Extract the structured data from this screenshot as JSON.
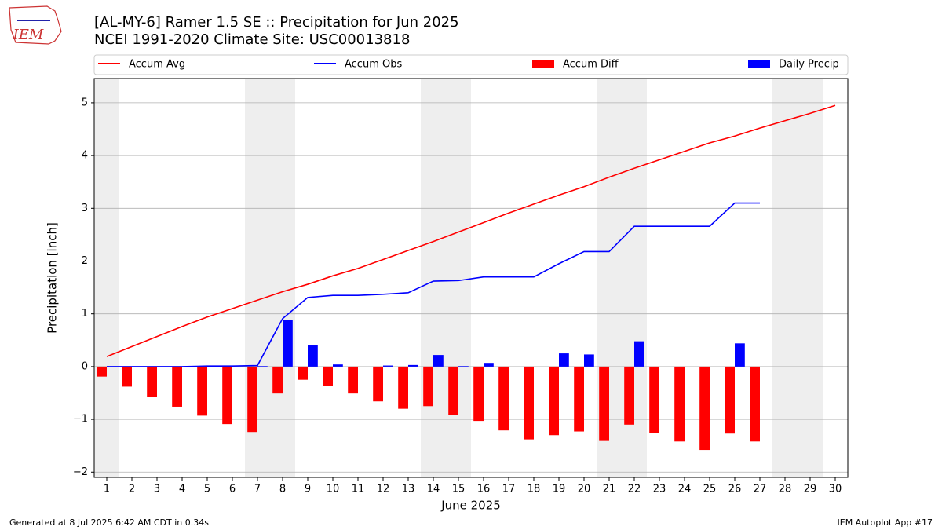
{
  "chart_data": {
    "type": "combo",
    "logo_text": "IEM",
    "title": "[AL-MY-6] Ramer 1.5 SE :: Precipitation for Jun 2025",
    "subtitle": "NCEI 1991-2020 Climate Site: USC00013818",
    "y_label": "Precipitation [inch]",
    "x_label": "June 2025",
    "footer_left": "Generated at 8 Jul 2025 6:42 AM CDT in 0.34s",
    "footer_right": "IEM Autoplot App #17",
    "xlim": [
      0.5,
      30.5
    ],
    "ylim": [
      -2.1,
      5.46
    ],
    "xticks": [
      1,
      2,
      3,
      4,
      5,
      6,
      7,
      8,
      9,
      10,
      11,
      12,
      13,
      14,
      15,
      16,
      17,
      18,
      19,
      20,
      21,
      22,
      23,
      24,
      25,
      26,
      27,
      28,
      29,
      30
    ],
    "yticks": [
      {
        "value": -2,
        "label": "−2"
      },
      {
        "value": -1,
        "label": "−1"
      },
      0,
      1,
      2,
      3,
      4,
      5
    ],
    "grid": true,
    "weekend_spans": [
      [
        0.5,
        1.5
      ],
      [
        6.5,
        8.5
      ],
      [
        13.5,
        15.5
      ],
      [
        20.5,
        22.5
      ],
      [
        27.5,
        29.5
      ]
    ],
    "x": [
      1,
      2,
      3,
      4,
      5,
      6,
      7,
      8,
      9,
      10,
      11,
      12,
      13,
      14,
      15,
      16,
      17,
      18,
      19,
      20,
      21,
      22,
      23,
      24,
      25,
      26,
      27,
      28,
      29,
      30
    ],
    "series": [
      {
        "name": "Accum Avg",
        "kind": "line",
        "color": "#ff0000",
        "values": [
          0.19,
          0.38,
          0.57,
          0.76,
          0.94,
          1.1,
          1.26,
          1.42,
          1.56,
          1.72,
          1.86,
          2.03,
          2.2,
          2.37,
          2.55,
          2.73,
          2.91,
          3.08,
          3.25,
          3.41,
          3.59,
          3.76,
          3.92,
          4.08,
          4.24,
          4.37,
          4.52,
          4.66,
          4.8,
          4.95
        ]
      },
      {
        "name": "Accum Obs",
        "kind": "line",
        "color": "#0000ff",
        "values": [
          0,
          0,
          0,
          0,
          0.01,
          0.01,
          0.02,
          0.91,
          1.31,
          1.35,
          1.35,
          1.37,
          1.4,
          1.62,
          1.63,
          1.7,
          1.7,
          1.7,
          1.95,
          2.18,
          2.18,
          2.66,
          2.66,
          2.66,
          2.66,
          3.1,
          3.1,
          null,
          null,
          null
        ]
      },
      {
        "name": "Accum Diff",
        "kind": "bar",
        "color": "#ff0000",
        "values": [
          -0.19,
          -0.38,
          -0.57,
          -0.76,
          -0.93,
          -1.09,
          -1.24,
          -0.51,
          -0.25,
          -0.37,
          -0.51,
          -0.66,
          -0.8,
          -0.75,
          -0.92,
          -1.03,
          -1.21,
          -1.38,
          -1.3,
          -1.23,
          -1.41,
          -1.1,
          -1.26,
          -1.42,
          -1.58,
          -1.27,
          -1.42,
          null,
          null,
          null
        ]
      },
      {
        "name": "Daily Precip",
        "kind": "bar",
        "color": "#0000ff",
        "values": [
          0,
          0,
          0,
          0,
          0.01,
          0,
          0.01,
          0.89,
          0.4,
          0.04,
          0,
          0.02,
          0.03,
          0.22,
          0.01,
          0.07,
          0,
          0,
          0.25,
          0.23,
          0,
          0.48,
          0,
          0,
          0,
          0.44,
          0,
          null,
          null,
          null
        ]
      }
    ]
  }
}
